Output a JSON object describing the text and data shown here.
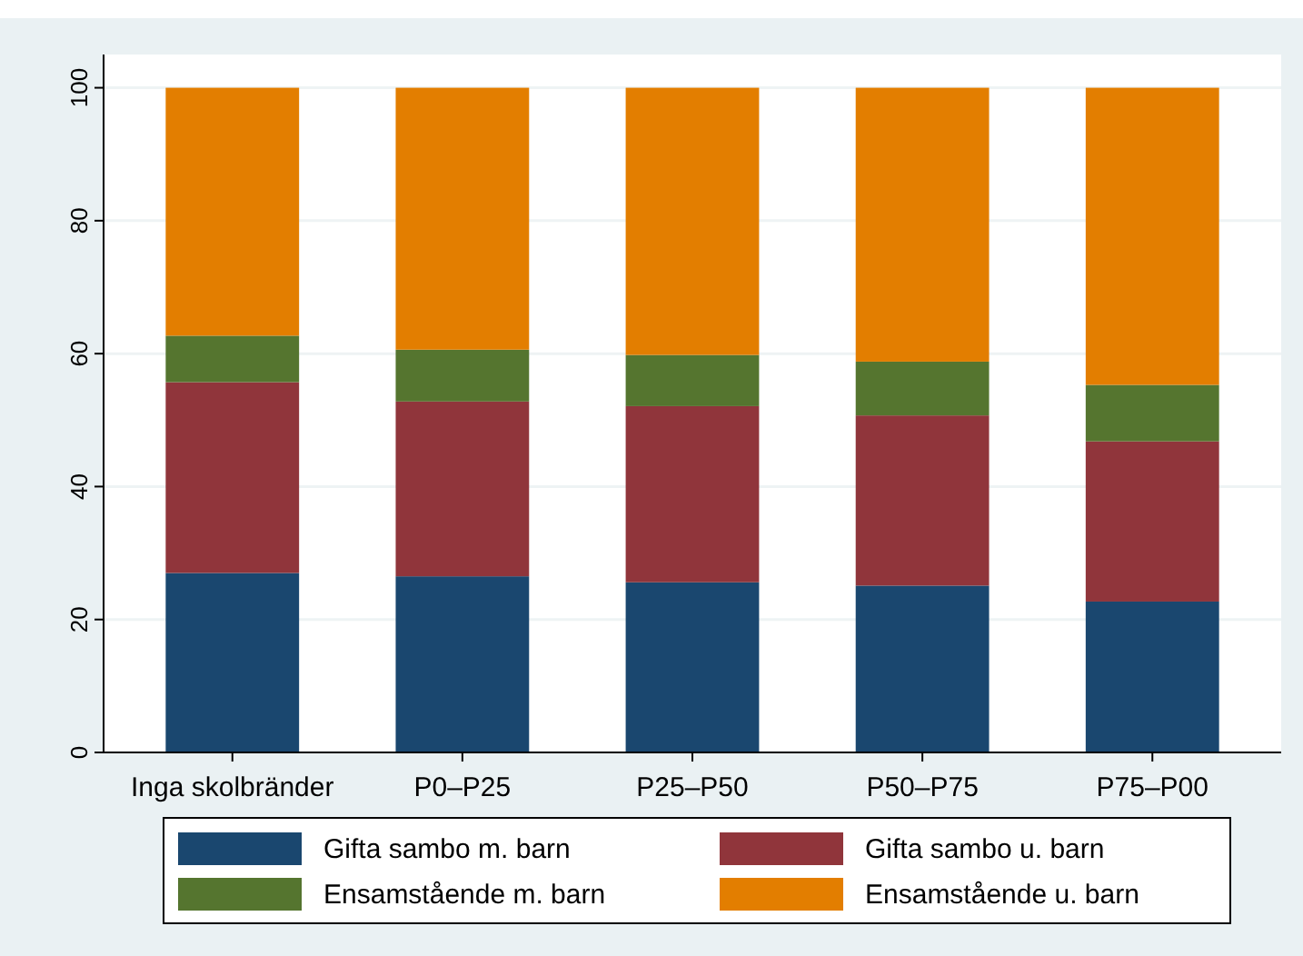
{
  "chart_data": {
    "type": "bar",
    "stacked": true,
    "categories": [
      "Inga skolbränder",
      "P0–P25",
      "P25–P50",
      "P50–P75",
      "P75–P00"
    ],
    "series": [
      {
        "name": "Gifta sambo m. barn",
        "color": "#1a476f",
        "values": [
          27.0,
          26.5,
          25.6,
          25.1,
          22.7
        ]
      },
      {
        "name": "Gifta sambo u. barn",
        "color": "#90353b",
        "values": [
          28.7,
          26.3,
          26.5,
          25.6,
          24.1
        ]
      },
      {
        "name": "Ensamstående m. barn",
        "color": "#55752f",
        "values": [
          7.0,
          7.8,
          7.7,
          8.1,
          8.5
        ]
      },
      {
        "name": "Ensamstående u. barn",
        "color": "#e37e00",
        "values": [
          37.3,
          39.4,
          40.2,
          41.2,
          44.7
        ]
      }
    ],
    "ylim": [
      0,
      105
    ],
    "yticks": [
      0,
      20,
      40,
      60,
      80,
      100
    ],
    "grid": "y",
    "legend": "bottom"
  }
}
